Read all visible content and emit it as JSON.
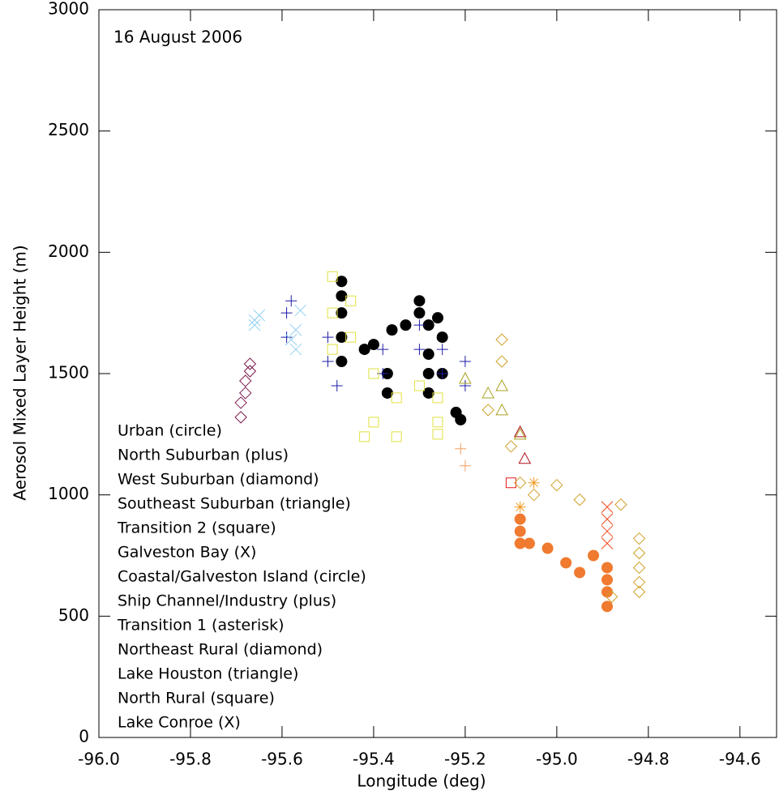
{
  "chart_data": {
    "type": "scatter",
    "annotation": "16 August 2006",
    "x_label": "Longitude (deg)",
    "y_label": "Aerosol Mixed Layer Height (m)",
    "xlim": [
      -96.0,
      -94.52
    ],
    "ylim": [
      0,
      3000
    ],
    "xticks": [
      {
        "value": -96.0,
        "label": "-96.0"
      },
      -95.8,
      -95.6,
      -95.4,
      -95.2,
      {
        "value": -95.0,
        "label": "-95.0"
      },
      -94.8,
      -94.6
    ],
    "yticks": [
      0,
      500,
      1000,
      1500,
      2000,
      2500,
      3000
    ],
    "series": [
      {
        "name": "Urban (circle)",
        "color": "#000000",
        "marker": "circle",
        "x": [
          -95.47,
          -95.47,
          -95.47,
          -95.47,
          -95.47,
          -95.42,
          -95.4,
          -95.37,
          -95.37,
          -95.36,
          -95.33,
          -95.3,
          -95.3,
          -95.28,
          -95.28,
          -95.28,
          -95.28,
          -95.26,
          -95.25,
          -95.25,
          -95.22,
          -95.21
        ],
        "values": [
          1550,
          1650,
          1750,
          1820,
          1880,
          1600,
          1620,
          1500,
          1420,
          1680,
          1700,
          1750,
          1800,
          1700,
          1580,
          1500,
          1420,
          1730,
          1650,
          1500,
          1340,
          1310
        ]
      },
      {
        "name": "North Suburban (plus)",
        "color": "#1c1ca8",
        "marker": "plus",
        "x": [
          -95.59,
          -95.59,
          -95.58,
          -95.5,
          -95.5,
          -95.48,
          -95.38,
          -95.38,
          -95.3,
          -95.3,
          -95.25,
          -95.25,
          -95.2,
          -95.2
        ],
        "values": [
          1650,
          1750,
          1800,
          1550,
          1650,
          1450,
          1500,
          1600,
          1600,
          1700,
          1500,
          1600,
          1450,
          1550
        ]
      },
      {
        "name": "West Suburban (diamond)",
        "color": "#7a1a4c",
        "marker": "diamond",
        "x": [
          -95.69,
          -95.69,
          -95.68,
          -95.68,
          -95.67,
          -95.67
        ],
        "values": [
          1320,
          1380,
          1420,
          1470,
          1510,
          1540
        ]
      },
      {
        "name": "Southeast Suburban (triangle)",
        "color": "#b01020",
        "marker": "triangle",
        "x": [
          -95.08,
          -95.07
        ],
        "values": [
          1260,
          1150
        ]
      },
      {
        "name": "Transition 2 (square)",
        "color": "#e81a1a",
        "marker": "square",
        "x": [
          -95.1
        ],
        "values": [
          1050
        ]
      },
      {
        "name": "Galveston Bay (X)",
        "color": "#f04a20",
        "marker": "x",
        "x": [
          -94.89,
          -94.89,
          -94.89,
          -94.89
        ],
        "values": [
          950,
          900,
          850,
          800
        ]
      },
      {
        "name": "Coastal/Galveston Island (circle)",
        "color": "#f07a30",
        "marker": "circle",
        "x": [
          -95.08,
          -95.08,
          -95.08,
          -95.06,
          -95.02,
          -94.98,
          -94.95,
          -94.92,
          -94.89,
          -94.89,
          -94.89,
          -94.89
        ],
        "values": [
          900,
          850,
          800,
          800,
          780,
          720,
          680,
          750,
          700,
          650,
          600,
          540
        ]
      },
      {
        "name": "Ship Channel/Industry (plus)",
        "color": "#f5a060",
        "marker": "plus",
        "x": [
          -95.21,
          -95.2
        ],
        "values": [
          1190,
          1120
        ]
      },
      {
        "name": "Transition 1 (asterisk)",
        "color": "#f09a20",
        "marker": "asterisk",
        "x": [
          -95.05,
          -95.08
        ],
        "values": [
          1050,
          950
        ]
      },
      {
        "name": "Northeast Rural (diamond)",
        "color": "#d0a028",
        "marker": "diamond",
        "x": [
          -95.12,
          -95.12,
          -95.15,
          -95.1,
          -95.08,
          -95.05,
          -95.0,
          -94.95,
          -94.86,
          -94.82,
          -94.82,
          -94.82,
          -94.82,
          -94.82,
          -94.88
        ],
        "values": [
          1640,
          1550,
          1350,
          1200,
          1050,
          1000,
          1040,
          980,
          960,
          820,
          760,
          700,
          640,
          600,
          580
        ]
      },
      {
        "name": "Lake Houston (triangle)",
        "color": "#a8a020",
        "marker": "triangle",
        "x": [
          -95.12,
          -95.12,
          -95.2,
          -95.08,
          -95.15
        ],
        "values": [
          1450,
          1350,
          1480,
          1250,
          1420
        ]
      },
      {
        "name": "North Rural (square)",
        "color": "#e2e040",
        "marker": "square",
        "x": [
          -95.49,
          -95.49,
          -95.49,
          -95.45,
          -95.45,
          -95.4,
          -95.4,
          -95.35,
          -95.35,
          -95.3,
          -95.26,
          -95.26,
          -95.26,
          -95.42
        ],
        "values": [
          1900,
          1750,
          1600,
          1800,
          1650,
          1500,
          1300,
          1400,
          1240,
          1450,
          1400,
          1300,
          1250,
          1240
        ]
      },
      {
        "name": "Lake Conroe (X)",
        "color": "#94d2f2",
        "marker": "x",
        "x": [
          -95.66,
          -95.66,
          -95.65,
          -95.57,
          -95.57,
          -95.56,
          -95.58
        ],
        "values": [
          1700,
          1720,
          1740,
          1600,
          1680,
          1760,
          1640
        ]
      }
    ]
  }
}
